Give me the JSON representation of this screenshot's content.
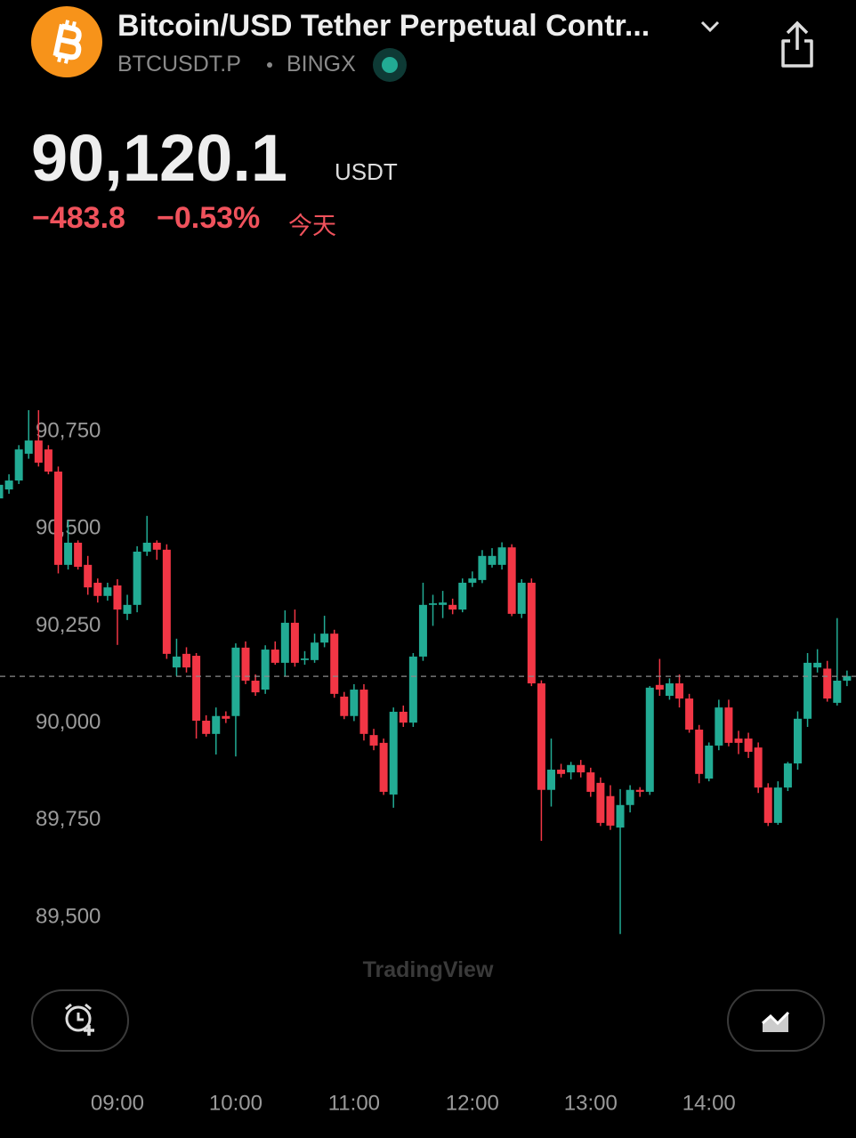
{
  "header": {
    "title": "Bitcoin/USD Tether Perpetual Contr...",
    "symbol": "BTCUSDT.P",
    "exchange": "BINGX"
  },
  "quote": {
    "price": "90,120.1",
    "currency": "USDT",
    "change": "−483.8",
    "change_pct": "−0.53%",
    "period": "今天"
  },
  "watermark": "TradingView",
  "chart_data": {
    "type": "candlestick",
    "x": [
      "08:00",
      "08:05",
      "08:10",
      "08:15",
      "08:20",
      "08:25",
      "08:30",
      "08:35",
      "08:40",
      "08:45",
      "08:50",
      "08:55",
      "09:00",
      "09:05",
      "09:10",
      "09:15",
      "09:20",
      "09:25",
      "09:30",
      "09:35",
      "09:40",
      "09:45",
      "09:50",
      "09:55",
      "10:00",
      "10:05",
      "10:10",
      "10:15",
      "10:20",
      "10:25",
      "10:30",
      "10:35",
      "10:40",
      "10:45",
      "10:50",
      "10:55",
      "11:00",
      "11:05",
      "11:10",
      "11:15",
      "11:20",
      "11:25",
      "11:30",
      "11:35",
      "11:40",
      "11:45",
      "11:50",
      "11:55",
      "12:00",
      "12:05",
      "12:10",
      "12:15",
      "12:20",
      "12:25",
      "12:30",
      "12:35",
      "12:40",
      "12:45",
      "12:50",
      "12:55",
      "13:00",
      "13:05",
      "13:10",
      "13:15",
      "13:20",
      "13:25",
      "13:30",
      "13:35",
      "13:40",
      "13:45",
      "13:50",
      "13:55",
      "14:00",
      "14:05",
      "14:10",
      "14:15",
      "14:20",
      "14:25",
      "14:30",
      "14:35",
      "14:40",
      "14:45",
      "14:50",
      "14:55",
      "15:00",
      "15:05",
      "15:10"
    ],
    "open": [
      90578,
      90601,
      90624,
      90693,
      90727,
      90704,
      90647,
      90407,
      90464,
      90407,
      90361,
      90327,
      90354,
      90281,
      90304,
      90441,
      90464,
      90446,
      90143,
      90178,
      90173,
      90006,
      89972,
      90018,
      90018,
      90194,
      90109,
      90086,
      90189,
      90155,
      90258,
      90162,
      90162,
      90207,
      90230,
      90068,
      90018,
      90086,
      89969,
      89949,
      89816,
      90029,
      90001,
      90171,
      90304,
      90304,
      90304,
      90292,
      90361,
      90368,
      90407,
      90407,
      90452,
      90281,
      90361,
      90102,
      89828,
      89880,
      89873,
      89892,
      89873,
      89846,
      89812,
      89731,
      89789,
      89828,
      89823,
      90098,
      90070,
      90102,
      90063,
      89983,
      89857,
      89942,
      90040,
      89960,
      89960,
      89937,
      89834,
      89743,
      89834,
      89896,
      90011,
      90143,
      90140,
      90052,
      90109
    ],
    "high": [
      90625,
      90640,
      90715,
      90805,
      90805,
      90715,
      90660,
      90521,
      90470,
      90430,
      90372,
      90361,
      90370,
      90330,
      90455,
      90533,
      90470,
      90460,
      90217,
      90195,
      90180,
      90020,
      90040,
      90030,
      90205,
      90210,
      90125,
      90200,
      90210,
      90290,
      90292,
      90185,
      90230,
      90276,
      90240,
      90080,
      90100,
      90100,
      89985,
      89960,
      90040,
      90045,
      90180,
      90361,
      90330,
      90340,
      90320,
      90372,
      90390,
      90445,
      90450,
      90465,
      90460,
      90370,
      90372,
      90110,
      89960,
      89895,
      89900,
      89905,
      89885,
      89860,
      89840,
      89830,
      89840,
      89835,
      90095,
      90165,
      90115,
      90125,
      90075,
      89995,
      89950,
      90060,
      90060,
      89980,
      89975,
      89950,
      89845,
      89850,
      89900,
      90030,
      90180,
      90190,
      90160,
      90270,
      90135
    ],
    "low": [
      90555,
      90590,
      90615,
      90680,
      90660,
      90640,
      90385,
      90395,
      90395,
      90330,
      90310,
      90315,
      90201,
      90265,
      90285,
      90430,
      90420,
      90165,
      90121,
      90130,
      89960,
      89965,
      89919,
      90000,
      89914,
      90100,
      90070,
      90075,
      90150,
      90121,
      90145,
      90150,
      90155,
      90195,
      90065,
      90010,
      90005,
      89955,
      89930,
      89815,
      89782,
      89990,
      89990,
      90160,
      90250,
      90270,
      90280,
      90285,
      90350,
      90360,
      90400,
      90395,
      90275,
      90270,
      90095,
      89697,
      89785,
      89860,
      89855,
      89860,
      89810,
      89735,
      89725,
      89457,
      89770,
      89810,
      89815,
      90070,
      90060,
      90040,
      89975,
      89845,
      89850,
      89930,
      89940,
      89920,
      89910,
      89820,
      89735,
      89738,
      89825,
      89880,
      89990,
      90130,
      90055,
      90045,
      90095
    ],
    "close": [
      90613,
      90624,
      90704,
      90727,
      90670,
      90647,
      90407,
      90464,
      90402,
      90349,
      90327,
      90349,
      90292,
      90304,
      90441,
      90464,
      90446,
      90178,
      90171,
      90143,
      90006,
      89972,
      90018,
      90011,
      90194,
      90109,
      90079,
      90189,
      90155,
      90258,
      90155,
      90166,
      90207,
      90230,
      90075,
      90018,
      90086,
      89972,
      89942,
      89823,
      90029,
      90001,
      90171,
      90304,
      90308,
      90310,
      90292,
      90361,
      90372,
      90430,
      90430,
      90452,
      90281,
      90361,
      90102,
      89828,
      89880,
      89869,
      89892,
      89873,
      89823,
      89743,
      89736,
      89789,
      89828,
      89823,
      90091,
      90086,
      90102,
      90063,
      89983,
      89869,
      89942,
      90040,
      89949,
      89949,
      89926,
      89834,
      89743,
      89834,
      89896,
      90011,
      90155,
      90155,
      90063,
      90109,
      90121
    ],
    "up_color": "#22ab94",
    "down_color": "#f23645",
    "last_price": 90120.1,
    "ylim": [
      89342,
      90876
    ],
    "yticks": [
      {
        "value": 90750,
        "label": "90,750"
      },
      {
        "value": 90500,
        "label": "90,500"
      },
      {
        "value": 90250,
        "label": "90,250"
      },
      {
        "value": 90000,
        "label": "90,000"
      },
      {
        "value": 89750,
        "label": "89,750"
      },
      {
        "value": 89500,
        "label": "89,500"
      }
    ],
    "xticks": [
      "09:00",
      "10:00",
      "11:00",
      "12:00",
      "13:00",
      "14:00"
    ]
  }
}
